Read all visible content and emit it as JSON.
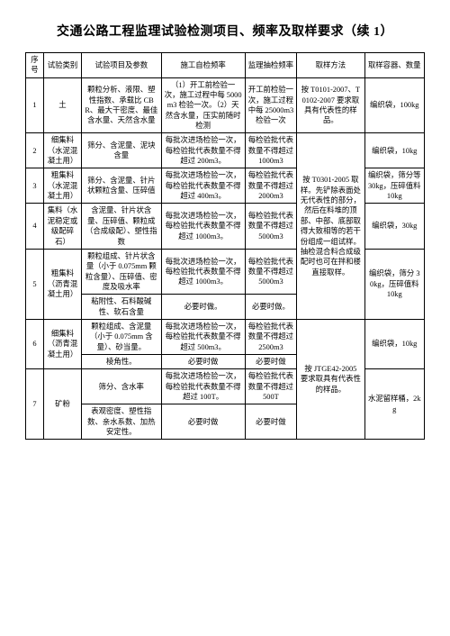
{
  "title": "交通公路工程监理试验检测项目、频率及取样要求（续 1）",
  "headers": {
    "h0": "序号",
    "h1": "试验类别",
    "h2": "试验项目及参数",
    "h3": "施工自检频率",
    "h4": "监理抽检频率",
    "h5": "取样方法",
    "h6": "取样容器、数量"
  },
  "rows": {
    "r1": {
      "no": "1",
      "cat": "土",
      "param": "颗粒分析、液限、塑性指数、承载比 CBR、最大干密度、最佳含水量、天然含水量",
      "self": "（1）开工前检验一次，施工过程中每 5000m3 检验一次。（2）天然含水量，压实前随时检测",
      "sup": "开工前检验一次，施工过程中每 25000m3 检验一次",
      "method": "按 T0101-2007、T0102-2007 要求取具有代表性的样品。",
      "container": "编织袋，100kg"
    },
    "r2": {
      "no": "2",
      "cat": "细集料（水泥混凝土用）",
      "param": "筛分、含泥量、泥块含量",
      "self": "每批次进场检验一次，每检验批代表数量不得超过 200m3。",
      "sup": "每检验批代表数量不得超过 1000m3",
      "method": "按 T0301-2005 取样。先铲除表面处无代表性的部分，然后在料堆的顶部、中部、底部取得大致相等的若干份组成一组试样。抽检混合料合成级配时也可在拌和楼直接取样。",
      "container": "编织袋，10kg"
    },
    "r3": {
      "no": "3",
      "cat": "粗集料（水泥混凝土用）",
      "param": "筛分、含泥量、针片状颗粒含量、压碎值",
      "self": "每批次进场检验一次，每检验批代表数量不得超过 400m3。",
      "sup": "每检验批代表数量不得超过 2000m3",
      "container": "编织袋，筛分等 30kg，压碎值料 10kg"
    },
    "r4": {
      "no": "4",
      "cat": "集料（水泥稳定或级配碎石）",
      "param": "含泥量、针片状含量、压碎值、颗粒成（合成级配）、塑性指数",
      "self": "每批次进场检验一次，每检验批代表数量不得超过 1000m3。",
      "sup": "每检验批代表数量不得超过 5000m3",
      "container": "编织袋，30kg"
    },
    "r5a": {
      "no": "5",
      "cat": "粗集料（沥青混凝土用）",
      "param": "颗粒组成、针片状含量（小于 0.075mm 颗粒含量）、压碎值、密度及吸水率",
      "self": "每批次进场检验一次，每检验批代表数量不得超过 1000m3。",
      "sup": "每检验批代表数量不得超过 5000m3",
      "container": "编织袋，筛分 30kg，压碎值料 10kg"
    },
    "r5b": {
      "param": "粘附性、石料酸碱性、软石含量",
      "self": "必要时做。",
      "sup": "必要时做。"
    },
    "r6a": {
      "no": "6",
      "cat": "细集料（沥青混凝土用）",
      "param": "颗粒组成、含泥量（小于 0.075mm 含量）、砂当量。",
      "self": "每批次进场检验一次，每检验批代表数量不得超过 500m3。",
      "sup": "每检验批代表数量不得超过 2500m3",
      "container": "编织袋，10kg"
    },
    "r6b": {
      "param": "棱角性。",
      "self": "必要时做",
      "sup": "必要时做"
    },
    "r7a": {
      "no": "7",
      "cat": "矿粉",
      "param": "筛分、含水率",
      "self": "每批次进场检验一次，每检验批代表数量不得超过 100T。",
      "sup": "每检验批代表数量不得超过 500T",
      "method": "按 JTGE42-2005 要求取具有代表性的样品。",
      "container": "水泥留样桶，2kg"
    },
    "r7b": {
      "param": "表观密度、塑性指数、亲水系数、加热安定性。",
      "self": "必要时做",
      "sup": "必要时做"
    }
  }
}
